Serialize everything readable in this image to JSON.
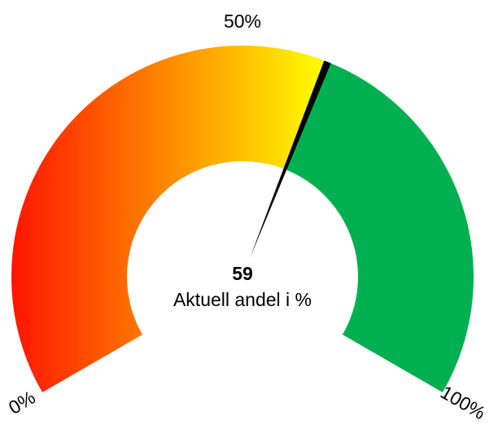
{
  "chart_data": {
    "type": "gauge",
    "value": 59,
    "value_label": "Aktuell andel i %",
    "xlim": [
      0,
      100
    ],
    "xticks": [
      {
        "value": 0,
        "label": "0%"
      },
      {
        "value": 50,
        "label": "50%"
      },
      {
        "value": 100,
        "label": "100%"
      }
    ],
    "gradient": [
      "#ff1500",
      "#ffff00"
    ],
    "color": "#00b050",
    "needle_color": "#000000"
  }
}
